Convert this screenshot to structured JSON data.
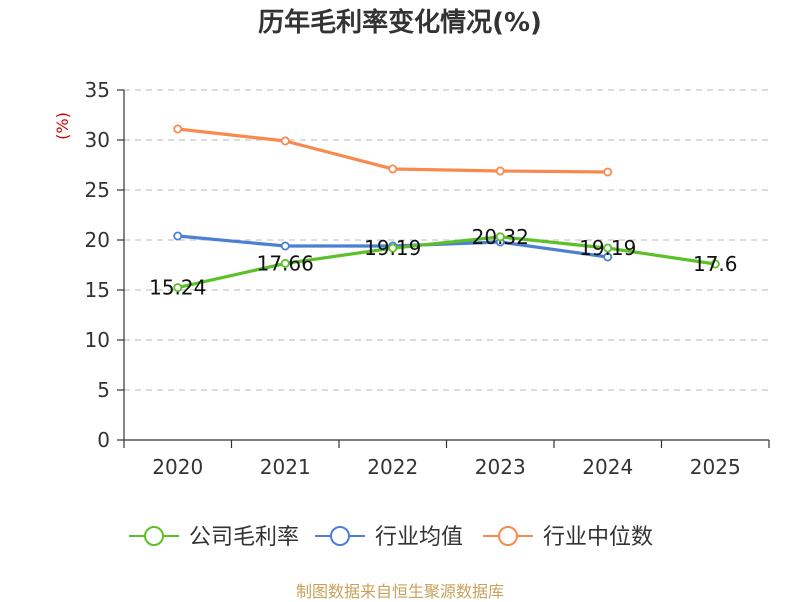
{
  "chart_data": {
    "type": "line",
    "title": "历年毛利率变化情况(%)",
    "ylabel": "(%)",
    "xlabel": "",
    "categories": [
      "2020",
      "2021",
      "2022",
      "2023",
      "2024",
      "2025"
    ],
    "ylim": [
      0,
      35
    ],
    "yticks": [
      0,
      5,
      10,
      15,
      20,
      25,
      30,
      35
    ],
    "grid": "horizontal-dashed",
    "series": [
      {
        "name": "公司毛利率",
        "color": "#5cc128",
        "values": [
          15.24,
          17.66,
          19.19,
          20.32,
          19.19,
          17.6
        ],
        "labels": [
          "15.24",
          "17.66",
          "19.19",
          "20.32",
          "19.19",
          "17.6"
        ]
      },
      {
        "name": "行业均值",
        "color": "#4a7fd4",
        "values": [
          20.4,
          19.4,
          19.4,
          19.8,
          18.3,
          null
        ]
      },
      {
        "name": "行业中位数",
        "color": "#f88a4f",
        "values": [
          31.1,
          29.9,
          27.1,
          26.9,
          26.8,
          null
        ]
      }
    ],
    "legend_position": "bottom"
  },
  "footer": {
    "source": "制图数据来自恒生聚源数据库"
  }
}
